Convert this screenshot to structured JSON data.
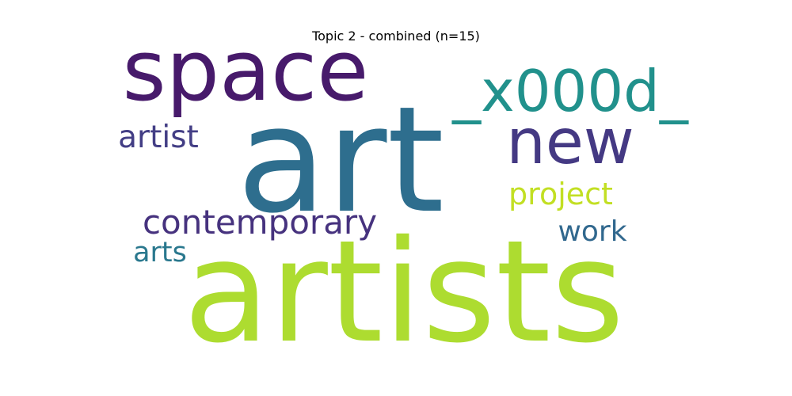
{
  "chart_data": {
    "type": "wordcloud",
    "title": "Topic 2 - combined (n=15)",
    "words": [
      {
        "text": "art",
        "weight": 1.0,
        "color": "#2e6e8e"
      },
      {
        "text": "artists",
        "weight": 0.92,
        "color": "#addc30"
      },
      {
        "text": "space",
        "weight": 0.55,
        "color": "#471a6b"
      },
      {
        "text": "_x000d_",
        "weight": 0.38,
        "color": "#21918c"
      },
      {
        "text": "new",
        "weight": 0.38,
        "color": "#443983"
      },
      {
        "text": "contemporary",
        "weight": 0.22,
        "color": "#46327e"
      },
      {
        "text": "artist",
        "weight": 0.2,
        "color": "#433e85"
      },
      {
        "text": "project",
        "weight": 0.19,
        "color": "#c2df23"
      },
      {
        "text": "work",
        "weight": 0.18,
        "color": "#31688e"
      },
      {
        "text": "arts",
        "weight": 0.16,
        "color": "#2a788e"
      }
    ]
  }
}
